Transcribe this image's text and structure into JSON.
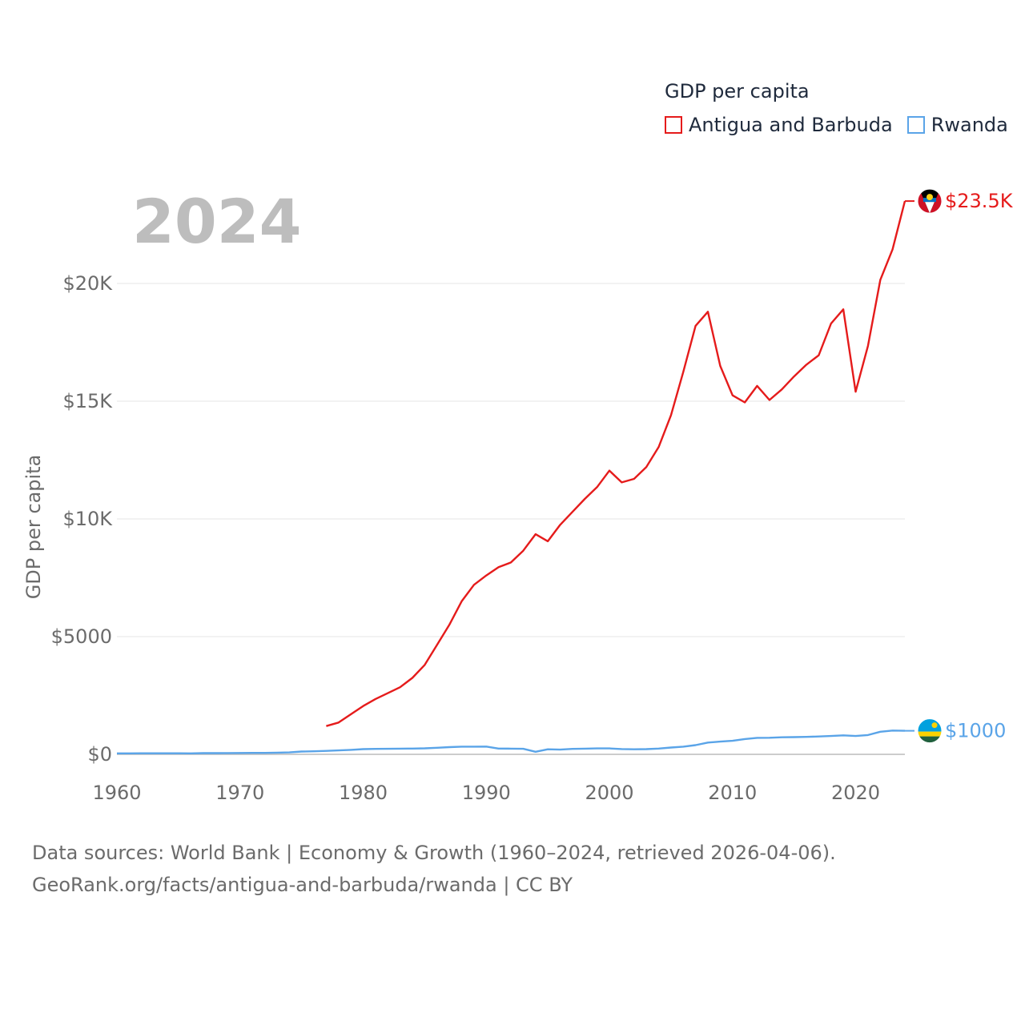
{
  "legend": {
    "title": "GDP per capita",
    "items": [
      {
        "label": "Antigua and Barbuda",
        "color": "#e51b1b"
      },
      {
        "label": "Rwanda",
        "color": "#5aa4e8"
      }
    ]
  },
  "year_label": "2024",
  "footer": {
    "line1": "Data sources: World Bank | Economy & Growth (1960–2024, retrieved 2026-04-06).",
    "line2": "GeoRank.org/facts/antigua-and-barbuda/rwanda | CC BY"
  },
  "chart_data": {
    "type": "line",
    "title": "GDP per capita",
    "xlabel": "",
    "ylabel": "GDP per capita",
    "xlim": [
      1960,
      2024
    ],
    "ylim": [
      0,
      20000
    ],
    "x_ticks": [
      1960,
      1970,
      1980,
      1990,
      2000,
      2010,
      2020
    ],
    "y_ticks": [
      0,
      5000,
      10000,
      15000,
      20000
    ],
    "y_tick_labels": [
      "$0",
      "$5000",
      "$10K",
      "$15K",
      "$20K"
    ],
    "grid": true,
    "series": [
      {
        "name": "Antigua and Barbuda",
        "color": "#e51b1b",
        "end_label": "$23.5K",
        "x": [
          1977,
          1978,
          1979,
          1980,
          1981,
          1982,
          1983,
          1984,
          1985,
          1986,
          1987,
          1988,
          1989,
          1990,
          1991,
          1992,
          1993,
          1994,
          1995,
          1996,
          1997,
          1998,
          1999,
          2000,
          2001,
          2002,
          2003,
          2004,
          2005,
          2006,
          2007,
          2008,
          2009,
          2010,
          2011,
          2012,
          2013,
          2014,
          2015,
          2016,
          2017,
          2018,
          2019,
          2020,
          2021,
          2022,
          2023,
          2024
        ],
        "values": [
          1200,
          1350,
          1700,
          2050,
          2350,
          2600,
          2850,
          3250,
          3800,
          4650,
          5500,
          6500,
          7200,
          7600,
          7950,
          8150,
          8650,
          9350,
          9050,
          9750,
          10300,
          10850,
          11350,
          12050,
          11550,
          11700,
          12200,
          13050,
          14400,
          16250,
          18200,
          18800,
          16500,
          15250,
          14950,
          15650,
          15050,
          15500,
          16050,
          16550,
          16950,
          18300,
          18900,
          15400,
          17350,
          20150,
          21450,
          23500
        ]
      },
      {
        "name": "Rwanda",
        "color": "#5aa4e8",
        "end_label": "$1000",
        "x": [
          1960,
          1961,
          1962,
          1963,
          1964,
          1965,
          1966,
          1967,
          1968,
          1969,
          1970,
          1971,
          1972,
          1973,
          1974,
          1975,
          1976,
          1977,
          1978,
          1979,
          1980,
          1981,
          1982,
          1983,
          1984,
          1985,
          1986,
          1987,
          1988,
          1989,
          1990,
          1991,
          1992,
          1993,
          1994,
          1995,
          1996,
          1997,
          1998,
          1999,
          2000,
          2001,
          2002,
          2003,
          2004,
          2005,
          2006,
          2007,
          2008,
          2009,
          2010,
          2011,
          2012,
          2013,
          2014,
          2015,
          2016,
          2017,
          2018,
          2019,
          2020,
          2021,
          2022,
          2023,
          2024
        ],
        "values": [
          40,
          42,
          43,
          44,
          44,
          45,
          40,
          50,
          50,
          55,
          58,
          60,
          62,
          70,
          80,
          120,
          130,
          145,
          165,
          190,
          220,
          230,
          235,
          240,
          245,
          255,
          280,
          305,
          325,
          325,
          330,
          245,
          240,
          235,
          110,
          215,
          200,
          230,
          240,
          250,
          250,
          225,
          215,
          220,
          245,
          290,
          325,
          390,
          500,
          540,
          575,
          650,
          700,
          705,
          725,
          730,
          740,
          760,
          780,
          805,
          780,
          820,
          960,
          1010,
          1000
        ]
      }
    ]
  }
}
